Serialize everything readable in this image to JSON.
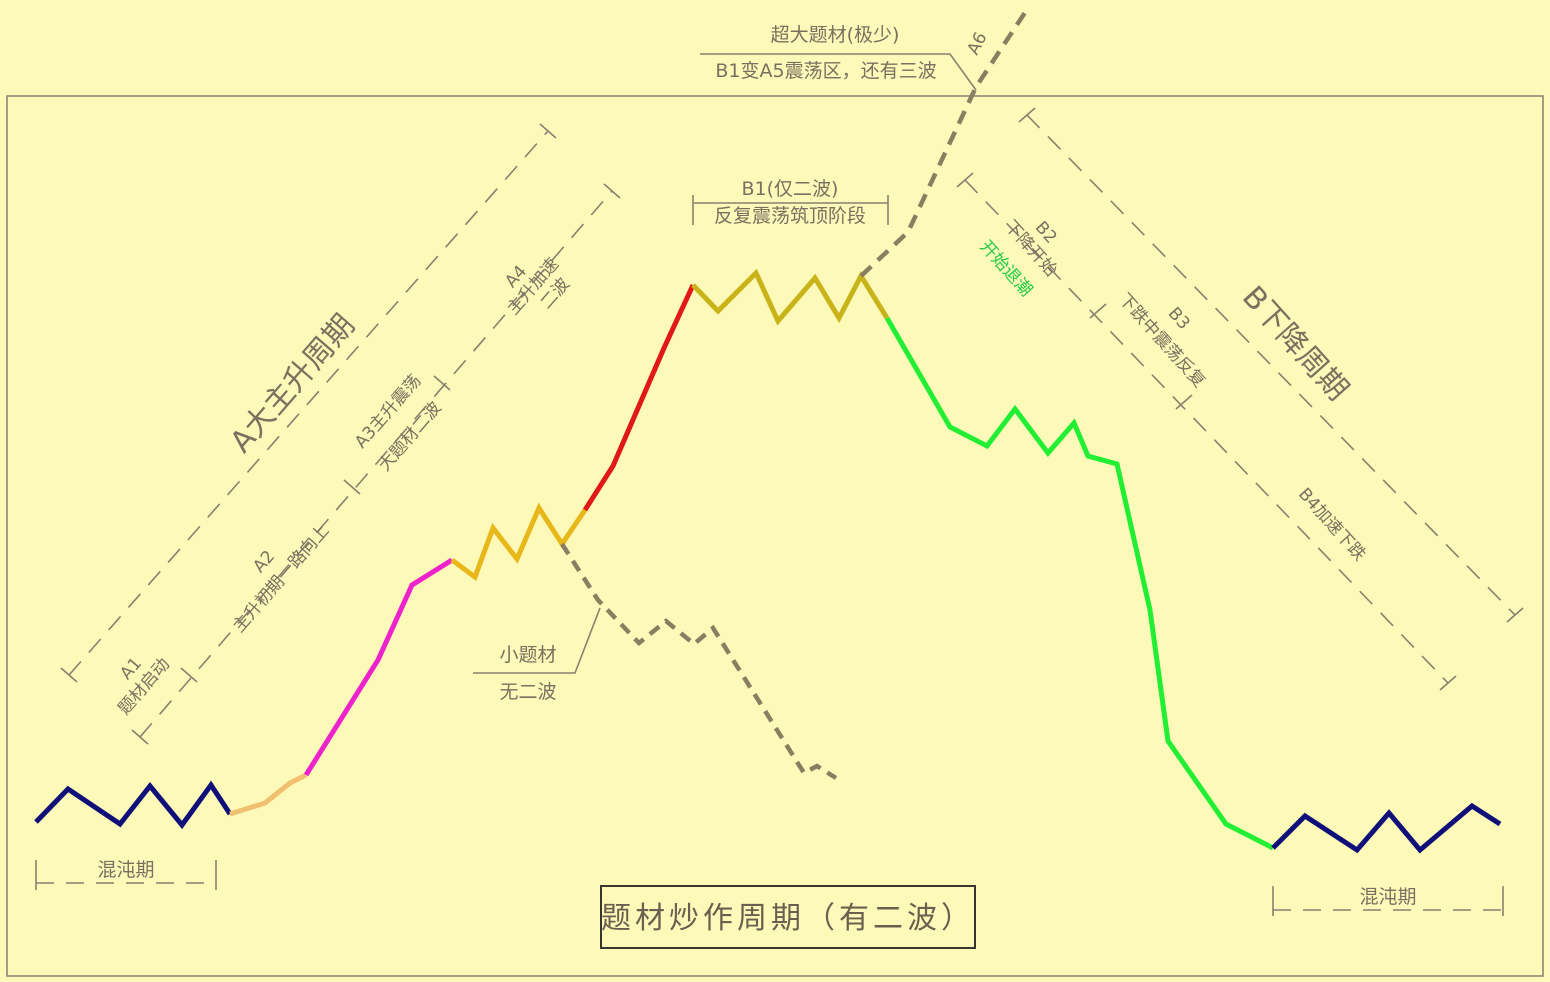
{
  "colors": {
    "background": "#fdf9b8",
    "frame": "#8a8070",
    "chaos": "#0f0f7a",
    "a1": "#f0c070",
    "a2": "#ee22cc",
    "a3": "#e8b81a",
    "a4": "#e01818",
    "b1": "#c8b418",
    "b_down": "#22ee33",
    "dashed_path": "#8a7e62",
    "b2_retreat": "#22cc44"
  },
  "labels": {
    "a_cycle": "A大主升周期",
    "a1_code": "A1",
    "a1_desc": "题材启动",
    "a2_code": "A2",
    "a2_desc": "主升初期一路向上",
    "a3_code": "A3主升震荡",
    "a3_desc": "大题材二波",
    "a4_code": "A4",
    "a4_desc1": "主升加速",
    "a4_desc2": "二波",
    "b1_code": "B1(仅二波)",
    "b1_desc": "反复震荡筑顶阶段",
    "a6_code": "A6",
    "super_topic": "超大题材(极少)",
    "super_desc": "B1变A5震荡区，还有三波",
    "small_topic": "小题材",
    "no_second_wave": "无二波",
    "b_cycle": "B下降周期",
    "b2_code": "B2",
    "b2_desc": "下降开始",
    "b2_retreat": "开始退潮",
    "b3_code": "B3",
    "b3_desc": "下跌中震荡反复",
    "b4_desc": "B4加速下跌",
    "chaos_left": "混沌期",
    "chaos_right": "混沌期",
    "title": "题材炒作周期（有二波）"
  }
}
